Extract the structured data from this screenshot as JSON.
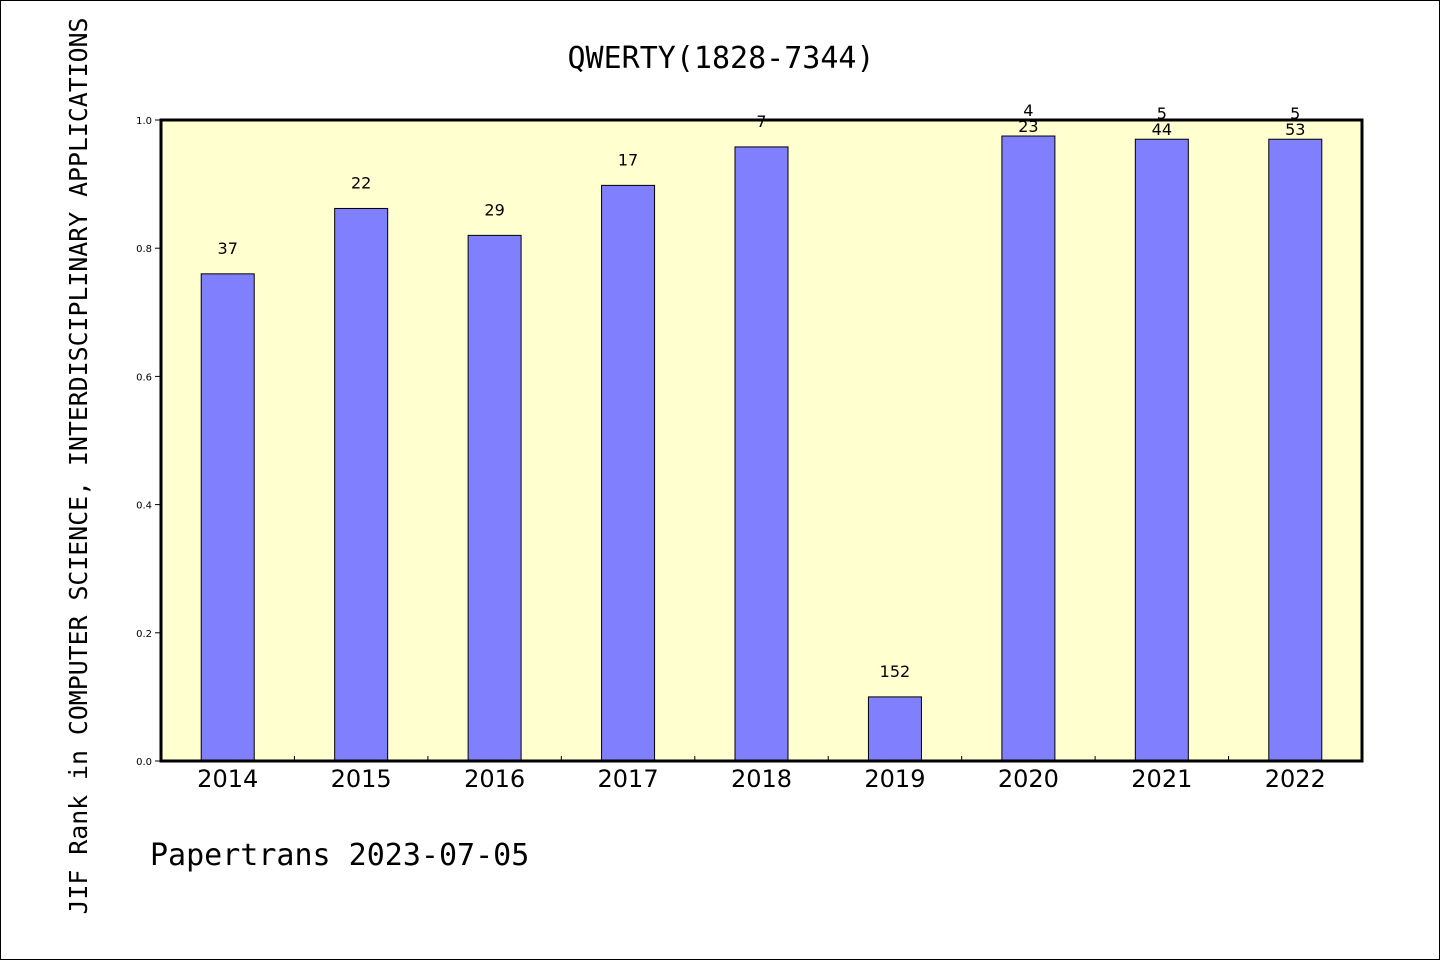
{
  "chart_data": {
    "type": "bar",
    "title": "QWERTY(1828-7344)",
    "ylabel": "JIF Rank in COMPUTER SCIENCE, INTERDISCIPLINARY APPLICATIONS",
    "xlabel": "",
    "categories": [
      "2014",
      "2015",
      "2016",
      "2017",
      "2018",
      "2019",
      "2020",
      "2021",
      "2022"
    ],
    "values": [
      0.76,
      0.862,
      0.82,
      0.898,
      0.958,
      0.1,
      0.975,
      0.97,
      0.97
    ],
    "rank_labels": [
      "37",
      "22",
      "29",
      "17",
      "7",
      "152",
      "23",
      "44",
      "53"
    ],
    "top_labels": [
      "",
      "",
      "",
      "",
      "",
      "",
      "4",
      "5",
      "5"
    ],
    "ylim": [
      0,
      1.0
    ],
    "yticks": [
      "0.0",
      "0.2",
      "0.4",
      "0.6",
      "0.8",
      "1.0"
    ],
    "grid": false,
    "colors": {
      "bar": "#8080ff",
      "plot_bg": "#ffffd0"
    }
  },
  "footer": "Papertrans 2023-07-05"
}
